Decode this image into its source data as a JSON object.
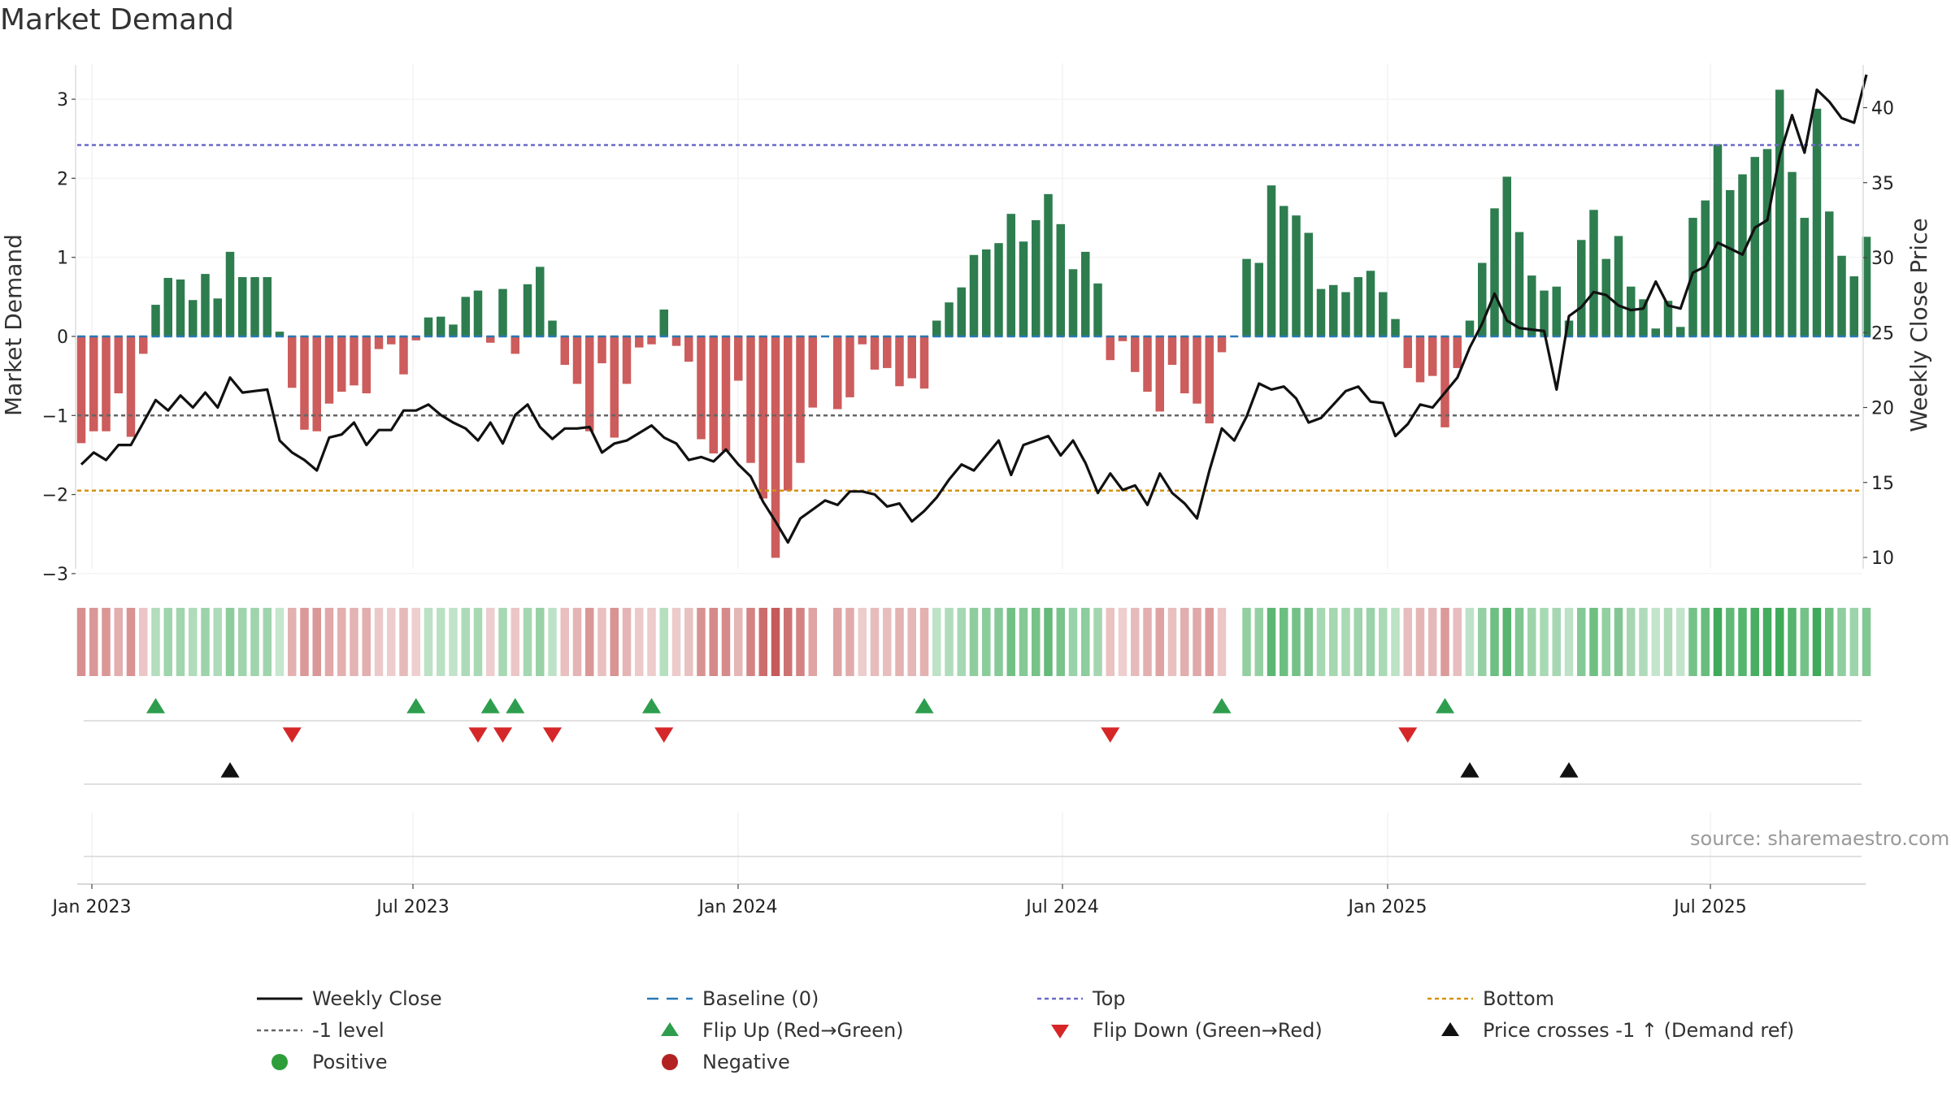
{
  "title": "Market Demand",
  "source": "source: sharemaestro.com",
  "chart_data": {
    "type": "bar",
    "title": "Market Demand",
    "ylabel_left": "Market Demand",
    "ylabel_right": "Weekly Close Price",
    "ylim_left": [
      -3.2,
      3.4
    ],
    "ylim_right": [
      9.5,
      43.5
    ],
    "yticks_left": [
      "3",
      "2",
      "1",
      "0",
      "−1",
      "−2",
      "−3"
    ],
    "yticks_right": [
      "40",
      "35",
      "30",
      "25",
      "20",
      "15",
      "10"
    ],
    "x_ticks": [
      "Jan 2023",
      "Jul 2023",
      "Jan 2024",
      "Jul 2024",
      "Jan 2025",
      "Jul 2025"
    ],
    "demand": [
      -1.35,
      -1.2,
      -1.2,
      -0.72,
      -1.27,
      -0.22,
      0.4,
      0.74,
      0.72,
      0.46,
      0.79,
      0.48,
      1.07,
      0.75,
      0.75,
      0.75,
      0.06,
      -0.65,
      -1.18,
      -1.2,
      -0.85,
      -0.7,
      -0.62,
      -0.72,
      -0.16,
      -0.1,
      -0.48,
      -0.05,
      0.24,
      0.25,
      0.15,
      0.5,
      0.58,
      -0.08,
      0.6,
      -0.22,
      0.66,
      0.88,
      0.2,
      -0.36,
      -0.6,
      -1.2,
      -0.34,
      -1.28,
      -0.6,
      -0.14,
      -0.1,
      0.34,
      -0.12,
      -0.32,
      -1.3,
      -1.48,
      -1.45,
      -0.56,
      -1.6,
      -2.05,
      -2.8,
      -1.95,
      -1.6,
      -0.9,
      0,
      -0.92,
      -0.77,
      -0.1,
      -0.42,
      -0.4,
      -0.63,
      -0.53,
      -0.66,
      0.2,
      0.43,
      0.62,
      1.03,
      1.1,
      1.18,
      1.55,
      1.2,
      1.47,
      1.8,
      1.42,
      0.85,
      1.07,
      0.67,
      -0.3,
      -0.06,
      -0.45,
      -0.7,
      -0.95,
      -0.36,
      -0.72,
      -0.85,
      -1.1,
      -0.2,
      0,
      0.98,
      0.93,
      1.91,
      1.65,
      1.53,
      1.31,
      0.6,
      0.65,
      0.56,
      0.75,
      0.83,
      0.56,
      0.22,
      -0.4,
      -0.58,
      -0.5,
      -1.15,
      -0.4,
      0.2,
      0.93,
      1.62,
      2.02,
      1.32,
      0.77,
      0.58,
      0.63,
      0.2,
      1.22,
      1.6,
      0.98,
      1.27,
      0.63,
      0.47,
      0.1,
      0.45,
      0.12,
      1.5,
      1.72,
      2.43,
      1.85,
      2.05,
      2.27,
      2.37,
      3.12,
      2.08,
      1.5,
      2.88,
      1.58,
      1.02,
      0.76,
      1.26
    ],
    "close": [
      16.2,
      17,
      16.5,
      17.5,
      17.5,
      19,
      20.5,
      19.8,
      20.8,
      20,
      21,
      20,
      22,
      21,
      21.1,
      21.2,
      17.8,
      17,
      16.5,
      15.8,
      18,
      18.2,
      19,
      17.5,
      18.5,
      18.5,
      19.8,
      19.8,
      20.2,
      19.5,
      19,
      18.6,
      17.8,
      19,
      17.6,
      19.5,
      20.2,
      18.7,
      17.9,
      18.6,
      18.6,
      18.7,
      17,
      17.6,
      17.8,
      18.3,
      18.8,
      18,
      17.6,
      16.5,
      16.7,
      16.4,
      17.2,
      16.2,
      15.4,
      13.7,
      12.4,
      11,
      12.6,
      13.2,
      13.8,
      13.5,
      14.4,
      14.4,
      14.2,
      13.4,
      13.6,
      12.4,
      13.1,
      14,
      15.2,
      16.2,
      15.8,
      16.8,
      17.8,
      15.5,
      17.5,
      17.8,
      18.1,
      16.8,
      17.8,
      16.3,
      14.3,
      15.6,
      14.5,
      14.8,
      13.5,
      15.6,
      14.3,
      13.6,
      12.6,
      15.8,
      18.6,
      17.8,
      19.4,
      21.6,
      21.2,
      21.4,
      20.6,
      19,
      19.3,
      20.2,
      21.1,
      21.4,
      20.4,
      20.3,
      18.1,
      18.9,
      20.2,
      20,
      21,
      22,
      24,
      25.6,
      27.6,
      25.8,
      25.3,
      25.2,
      25.1,
      21.2,
      26.1,
      26.7,
      27.7,
      27.5,
      26.8,
      26.5,
      26.6,
      28.4,
      26.8,
      26.6,
      29,
      29.4,
      31,
      30.6,
      30.2,
      32,
      32.5,
      36.8,
      39.5,
      37,
      41.2,
      40.4,
      39.3,
      39,
      42.2
    ],
    "top_level": 2.42,
    "bottom_level": -1.95,
    "minus1_level": -1.0,
    "flip_up_indices": [
      6,
      27,
      33,
      35,
      46,
      68,
      92,
      110
    ],
    "flip_down_indices": [
      17,
      32,
      34,
      38,
      47,
      83,
      107
    ],
    "price_cross_indices": [
      12,
      112,
      120
    ],
    "legend": [
      {
        "key": "weekly_close",
        "label": "Weekly Close"
      },
      {
        "key": "baseline",
        "label": "Baseline (0)"
      },
      {
        "key": "top",
        "label": "Top"
      },
      {
        "key": "bottom",
        "label": "Bottom"
      },
      {
        "key": "minus1",
        "label": "-1 level"
      },
      {
        "key": "flip_up",
        "label": "Flip Up (Red→Green)"
      },
      {
        "key": "flip_down",
        "label": "Flip Down (Green→Red)"
      },
      {
        "key": "price_cross",
        "label": "Price crosses -1 ↑ (Demand ref)"
      },
      {
        "key": "positive",
        "label": "Positive"
      },
      {
        "key": "negative",
        "label": "Negative"
      }
    ],
    "colors": {
      "positive_bar": "#2e7d4f",
      "negative_bar": "#cd5c5c",
      "close_line": "#111111",
      "baseline": "#2878b5",
      "top": "#6a6ac8",
      "bottom": "#d4930f",
      "minus1": "#666666",
      "flip_up": "#2e9e4e",
      "flip_down": "#d62728",
      "price_cross": "#111111",
      "positive_dot": "#2e9e3a",
      "negative_dot": "#b22222"
    }
  }
}
